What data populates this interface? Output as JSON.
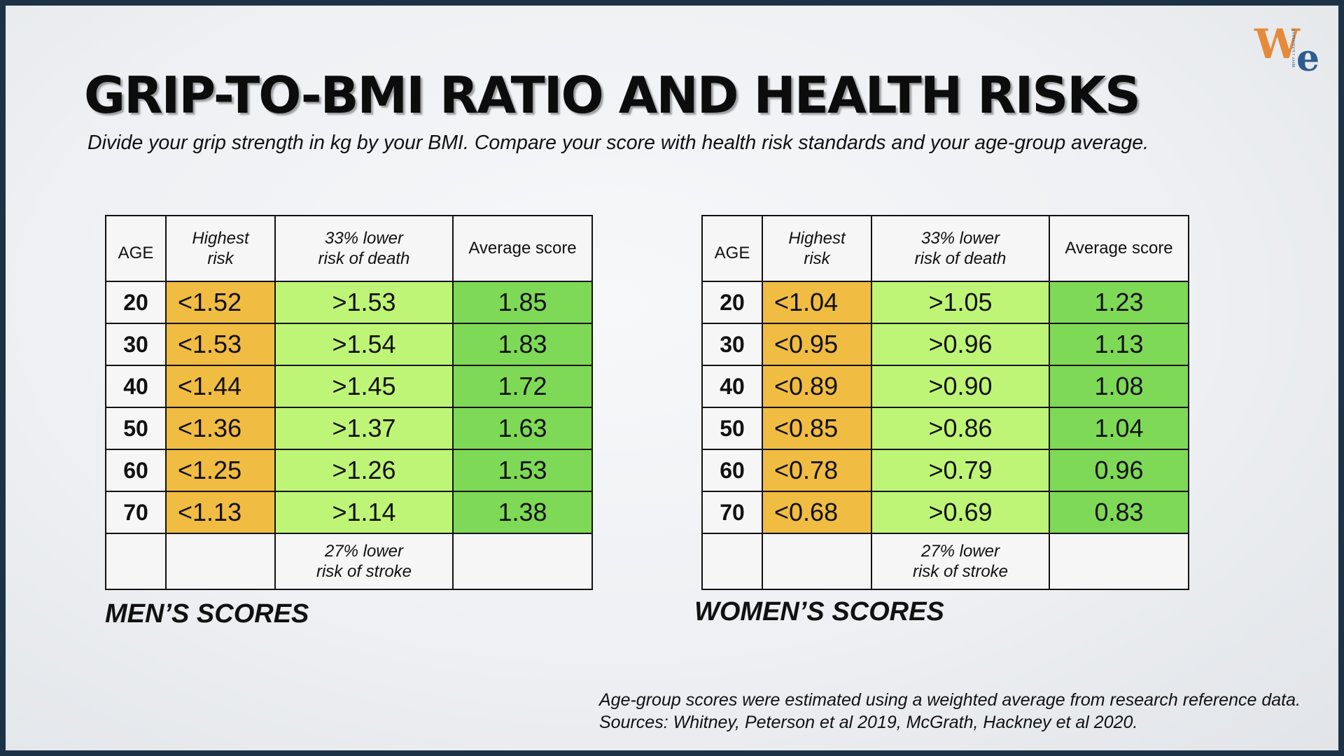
{
  "title": "Grip-to-BMI Ratio and Health Risks",
  "subtitle": "Divide your grip strength in kg by your BMI.  Compare your score with health risk standards and your age-group average.",
  "logo": {
    "letters_w": "W",
    "letters_e": "e",
    "tiny": "WHY I EXERCISE"
  },
  "headers": {
    "age": "AGE",
    "highest_risk": [
      "Highest",
      "risk"
    ],
    "lower_death": [
      "33% lower",
      "risk of death"
    ],
    "average": "Average score",
    "lower_stroke": [
      "27% lower",
      "risk of stroke"
    ]
  },
  "men": {
    "label": "MEN’S SCORES",
    "rows": [
      {
        "age": "20",
        "risk": "<1.52",
        "lower": ">1.53",
        "avg": "1.85"
      },
      {
        "age": "30",
        "risk": "<1.53",
        "lower": ">1.54",
        "avg": "1.83"
      },
      {
        "age": "40",
        "risk": "<1.44",
        "lower": ">1.45",
        "avg": "1.72"
      },
      {
        "age": "50",
        "risk": "<1.36",
        "lower": ">1.37",
        "avg": "1.63"
      },
      {
        "age": "60",
        "risk": "<1.25",
        "lower": ">1.26",
        "avg": "1.53"
      },
      {
        "age": "70",
        "risk": "<1.13",
        "lower": ">1.14",
        "avg": "1.38"
      }
    ]
  },
  "women": {
    "label": "WOMEN’S SCORES",
    "rows": [
      {
        "age": "20",
        "risk": "<1.04",
        "lower": ">1.05",
        "avg": "1.23"
      },
      {
        "age": "30",
        "risk": "<0.95",
        "lower": ">0.96",
        "avg": "1.13"
      },
      {
        "age": "40",
        "risk": "<0.89",
        "lower": ">0.90",
        "avg": "1.08"
      },
      {
        "age": "50",
        "risk": "<0.85",
        "lower": ">0.86",
        "avg": "1.04"
      },
      {
        "age": "60",
        "risk": "<0.78",
        "lower": ">0.79",
        "avg": "0.96"
      },
      {
        "age": "70",
        "risk": "<0.68",
        "lower": ">0.69",
        "avg": "0.83"
      }
    ]
  },
  "sources": [
    "Age-group scores were estimated using a weighted average from research reference data.",
    "Sources: Whitney, Peterson et al 2019, McGrath, Hackney et al 2020."
  ],
  "colors": {
    "highest_risk": "#f0bc42",
    "lower_risk": "#bff576",
    "average": "#7ed957",
    "frame": "#1d3245"
  }
}
